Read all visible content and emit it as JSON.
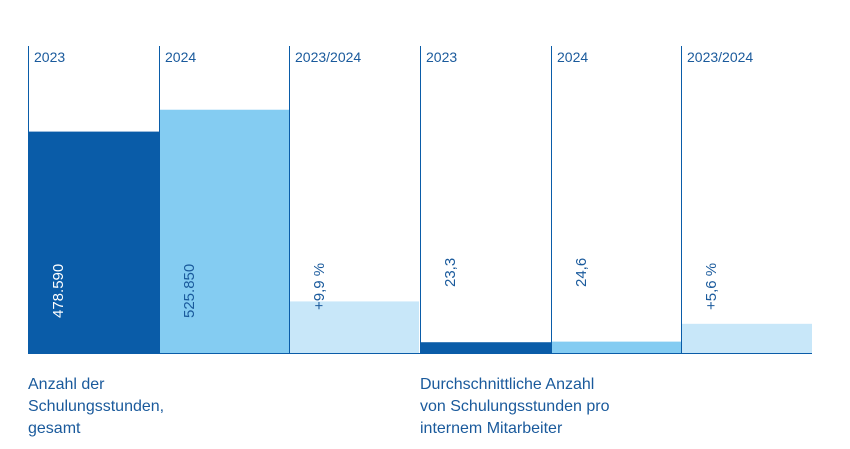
{
  "colors": {
    "dark_blue": "#0a5ca8",
    "mid_blue": "#84ccf2",
    "light_blue": "#c8e7f9",
    "axis_line": "#0a5ca8",
    "label_text": "#1a5a9c"
  },
  "chart_data": [
    {
      "type": "bar",
      "categories": [
        "2023",
        "2024",
        "2023/2024"
      ],
      "values": [
        478590,
        525850,
        9.9
      ],
      "value_labels": [
        "478.590",
        "525.850",
        "+9,9 %"
      ],
      "category_colors": [
        "#0a5ca8",
        "#84ccf2",
        "#c8e7f9"
      ],
      "caption_lines": [
        "Anzahl der",
        "Schulungsstunden,",
        "gesamt"
      ]
    },
    {
      "type": "bar",
      "categories": [
        "2023",
        "2024",
        "2023/2024"
      ],
      "values": [
        23.3,
        24.6,
        5.6
      ],
      "value_labels": [
        "23,3",
        "24,6",
        "+5,6 %"
      ],
      "category_colors": [
        "#0a5ca8",
        "#84ccf2",
        "#c8e7f9"
      ],
      "caption_lines": [
        "Durchschnittliche Anzahl",
        "von Schulungsstunden pro",
        "internem Mitarbeiter"
      ]
    }
  ]
}
